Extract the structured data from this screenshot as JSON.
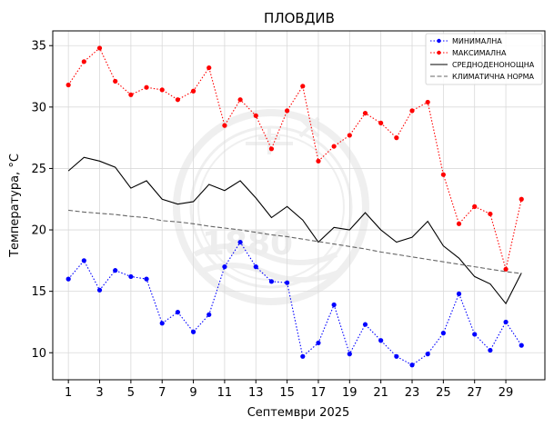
{
  "chart_data": {
    "type": "line",
    "title": "ПЛОВДИВ",
    "xlabel": "Септември  2025",
    "ylabel": "Температура,  °C",
    "xlim": [
      0,
      31.5
    ],
    "ylim": [
      7.8,
      36.2
    ],
    "xticks": [
      1,
      3,
      5,
      7,
      9,
      11,
      13,
      15,
      17,
      19,
      21,
      23,
      25,
      27,
      29
    ],
    "yticks": [
      10,
      15,
      20,
      25,
      30,
      35
    ],
    "grid": true,
    "legend_position": "top-right",
    "watermark": "1880",
    "x": [
      1,
      2,
      3,
      4,
      5,
      6,
      7,
      8,
      9,
      10,
      11,
      12,
      13,
      14,
      15,
      16,
      17,
      18,
      19,
      20,
      21,
      22,
      23,
      24,
      25,
      26,
      27,
      28,
      29,
      30
    ],
    "series": [
      {
        "name": "МИНИМАЛНА",
        "color": "#0000ff",
        "style": "dotted",
        "marker": true,
        "values": [
          16.0,
          17.5,
          15.1,
          16.7,
          16.2,
          16.0,
          12.4,
          13.3,
          11.7,
          13.1,
          17.0,
          19.0,
          17.0,
          15.8,
          15.7,
          9.7,
          10.8,
          13.9,
          9.9,
          12.3,
          11.0,
          9.7,
          9.0,
          9.9,
          11.6,
          14.8,
          11.5,
          10.2,
          12.5,
          10.6
        ]
      },
      {
        "name": "МАКСИМАЛНА",
        "color": "#ff0000",
        "style": "dotted",
        "marker": true,
        "values": [
          31.8,
          33.7,
          34.8,
          32.1,
          31.0,
          31.6,
          31.4,
          30.6,
          31.3,
          33.2,
          28.5,
          30.6,
          29.3,
          26.6,
          29.7,
          31.7,
          25.6,
          26.8,
          27.7,
          29.5,
          28.7,
          27.5,
          29.7,
          30.4,
          24.5,
          20.5,
          21.9,
          21.3,
          16.8,
          22.5
        ]
      },
      {
        "name": "СРЕДНОДЕНОНОЩНА",
        "color": "#000000",
        "style": "solid",
        "marker": false,
        "values": [
          24.8,
          25.9,
          25.6,
          25.1,
          23.4,
          24.0,
          22.5,
          22.1,
          22.3,
          23.7,
          23.2,
          24.0,
          22.6,
          21.0,
          21.9,
          20.8,
          19.0,
          20.2,
          20.0,
          21.4,
          20.0,
          19.0,
          19.4,
          20.7,
          18.7,
          17.7,
          16.2,
          15.6,
          14.0,
          16.5
        ]
      },
      {
        "name": "КЛИМАТИЧНА НОРМА",
        "color": "#666666",
        "style": "dashed",
        "marker": false,
        "values": [
          21.6,
          21.45,
          21.35,
          21.25,
          21.1,
          21.0,
          20.75,
          20.65,
          20.5,
          20.3,
          20.15,
          20.0,
          19.8,
          19.6,
          19.45,
          19.25,
          19.05,
          18.85,
          18.65,
          18.45,
          18.2,
          18.0,
          17.8,
          17.6,
          17.4,
          17.2,
          17.0,
          16.8,
          16.6,
          16.45
        ]
      }
    ]
  }
}
